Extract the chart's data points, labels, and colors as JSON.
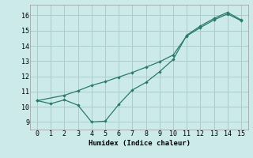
{
  "xlabel": "Humidex (Indice chaleur)",
  "background_color": "#cceaea",
  "grid_color": "#aacccc",
  "line_color": "#2a7a6a",
  "xlim": [
    -0.5,
    15.5
  ],
  "ylim": [
    8.5,
    16.7
  ],
  "xticks": [
    0,
    1,
    2,
    3,
    4,
    5,
    6,
    7,
    8,
    9,
    10,
    11,
    12,
    13,
    14,
    15
  ],
  "yticks": [
    9,
    10,
    11,
    12,
    13,
    14,
    15,
    16
  ],
  "line1_x": [
    0,
    1,
    2,
    3,
    4,
    5,
    6,
    7,
    8,
    9,
    10,
    11,
    12,
    13,
    14,
    15
  ],
  "line1_y": [
    10.4,
    10.2,
    10.45,
    10.1,
    9.0,
    9.05,
    10.15,
    11.1,
    11.6,
    12.3,
    13.1,
    14.7,
    15.3,
    15.8,
    16.2,
    15.7
  ],
  "line2_x": [
    0,
    2,
    3,
    4,
    5,
    6,
    7,
    8,
    9,
    10,
    11,
    12,
    13,
    14,
    15
  ],
  "line2_y": [
    10.4,
    10.75,
    11.05,
    11.4,
    11.65,
    11.95,
    12.25,
    12.6,
    12.95,
    13.4,
    14.65,
    15.2,
    15.7,
    16.1,
    15.65
  ]
}
